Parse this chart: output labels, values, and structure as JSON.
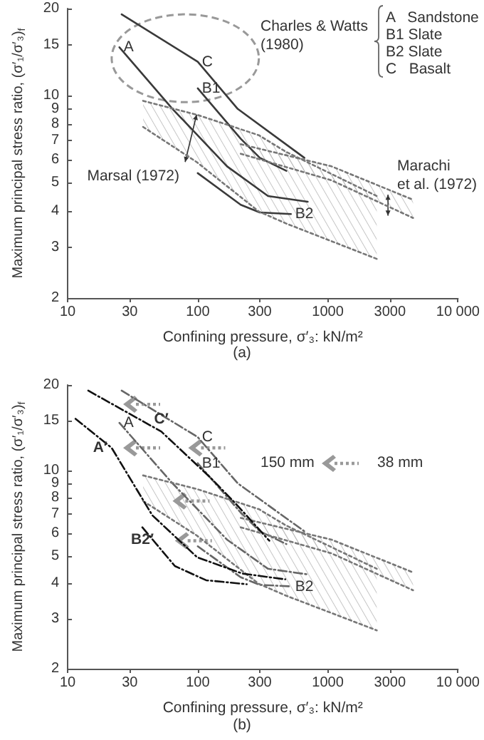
{
  "chart_data": [
    {
      "type": "line",
      "title": "(a)",
      "xlabel": "Confining pressure, σ′₃: kN/m²",
      "ylabel": "Maximum principal stress ratio, (σ′₁/σ′₃)$_{f}$",
      "log": "xy",
      "xlim": [
        10,
        10000
      ],
      "ylim": [
        2,
        20
      ],
      "xticks": [
        10,
        30,
        100,
        300,
        1000,
        3000,
        {
          "value": 10000,
          "label": "10 000"
        }
      ],
      "yticks": [
        2,
        3,
        4,
        5,
        6,
        7,
        8,
        9,
        10,
        15,
        20
      ],
      "marker": "none",
      "line_style": "solid",
      "annotations": [
        "Charles & Watts\n(1980)",
        "A   Sandstone",
        "B1 Slate",
        "B2 Slate",
        "C   Basalt",
        "Marsal (1972)",
        "Marachi\net al. (1972)"
      ],
      "series": [
        {
          "name": "A",
          "color": "#3a3a3a",
          "x": [
            25,
            64,
            168,
            347,
            700
          ],
          "values": [
            14.7,
            9,
            5.7,
            4.5,
            4.3
          ]
        },
        {
          "name": "B1",
          "color": "#3a3a3a",
          "x": [
            100,
            214,
            300,
            480
          ],
          "values": [
            10.6,
            7.1,
            6.1,
            5.5
          ]
        },
        {
          "name": "B2",
          "color": "#3a3a3a",
          "x": [
            100,
            214,
            300,
            520
          ],
          "values": [
            5.4,
            4.2,
            3.95,
            3.9
          ]
        },
        {
          "name": "C",
          "color": "#3a3a3a",
          "x": [
            26,
            100,
            203,
            660
          ],
          "values": [
            19.1,
            13.1,
            9,
            6.1
          ]
        },
        {
          "color": "#777777",
          "line_style": "dotted",
          "x": [
            38,
            98,
            295,
            476,
            2377
          ],
          "values": [
            9.6,
            8.6,
            7.3,
            6.4,
            4.5
          ]
        },
        {
          "color": "#777777",
          "line_style": "dotted",
          "x": [
            38,
            98,
            295,
            476,
            2377
          ],
          "values": [
            7.8,
            5.9,
            3.98,
            3.62,
            2.73
          ]
        },
        {
          "color": "#777777",
          "line_style": "dotted",
          "x": [
            214,
            1067,
            4520
          ],
          "values": [
            6.8,
            5.7,
            4.37
          ]
        },
        {
          "color": "#777777",
          "line_style": "dotted",
          "x": [
            214,
            1067,
            4520
          ],
          "values": [
            6.3,
            5.1,
            3.78
          ]
        }
      ]
    },
    {
      "type": "line",
      "title": "(b)",
      "xlabel": "Confining pressure, σ′₃: kN/m²",
      "ylabel": "Maximum principal stress ratio, (σ′₁/σ′₃)$_{f}$",
      "log": "xy",
      "xlim": [
        10,
        10000
      ],
      "ylim": [
        2,
        20
      ],
      "xticks": [
        10,
        30,
        100,
        300,
        1000,
        3000,
        {
          "value": 10000,
          "label": "10 000"
        }
      ],
      "yticks": [
        2,
        3,
        4,
        5,
        6,
        7,
        8,
        9,
        10,
        15,
        20
      ],
      "marker": "none",
      "line_style": "dashed",
      "annotations": [
        "150 mm",
        "38 mm"
      ],
      "series": [
        {
          "name": "A",
          "color": "#666666",
          "x": [
            25,
            64,
            168,
            347,
            700
          ],
          "values": [
            14.7,
            9,
            5.7,
            4.5,
            4.3
          ]
        },
        {
          "name": "B1",
          "color": "#666666",
          "x": [
            100,
            214,
            300,
            480
          ],
          "values": [
            10.6,
            7.1,
            6.1,
            5.5
          ]
        },
        {
          "name": "B2",
          "color": "#666666",
          "x": [
            100,
            214,
            300,
            520
          ],
          "values": [
            5.4,
            4.2,
            3.95,
            3.9
          ]
        },
        {
          "name": "C",
          "color": "#666666",
          "x": [
            26,
            100,
            203,
            660
          ],
          "values": [
            19.1,
            13.1,
            9,
            6.1
          ]
        },
        {
          "color": "#777777",
          "line_style": "dotted",
          "x": [
            38,
            98,
            295,
            476,
            2377
          ],
          "values": [
            9.6,
            8.6,
            7.3,
            6.4,
            4.5
          ]
        },
        {
          "color": "#777777",
          "line_style": "dotted",
          "x": [
            38,
            98,
            295,
            476,
            2377
          ],
          "values": [
            7.8,
            5.9,
            3.98,
            3.62,
            2.73
          ]
        },
        {
          "color": "#777777",
          "line_style": "dotted",
          "x": [
            214,
            1067,
            4520
          ],
          "values": [
            6.8,
            5.7,
            4.37
          ]
        },
        {
          "color": "#777777",
          "line_style": "dotted",
          "x": [
            214,
            1067,
            4520
          ],
          "values": [
            6.3,
            5.1,
            3.78
          ]
        },
        {
          "name": "A′",
          "color": "#111111",
          "x": [
            11.5,
            21.8,
            44.7,
            99,
            220,
            470
          ],
          "values": [
            15.2,
            12,
            6.95,
            4.94,
            4.33,
            4.13
          ]
        },
        {
          "name": "C′",
          "color": "#111111",
          "x": [
            14.4,
            52.5,
            126,
            203,
            355
          ],
          "values": [
            19.1,
            13.7,
            9.4,
            7.5,
            5.65
          ]
        },
        {
          "name": "B2′",
          "color": "#111111",
          "x": [
            37.5,
            66.7,
            116,
            238
          ],
          "values": [
            6.3,
            4.6,
            4.1,
            3.97
          ]
        }
      ]
    }
  ]
}
